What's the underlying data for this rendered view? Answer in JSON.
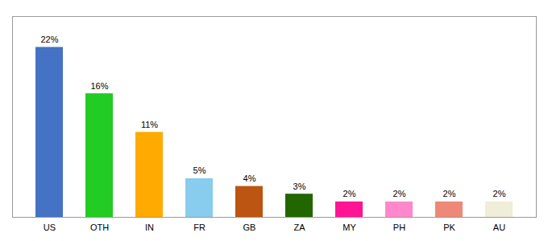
{
  "chart_data": {
    "type": "bar",
    "categories": [
      "US",
      "OTH",
      "IN",
      "FR",
      "GB",
      "ZA",
      "MY",
      "PH",
      "PK",
      "AU"
    ],
    "values": [
      22,
      16,
      11,
      5,
      4,
      3,
      2,
      2,
      2,
      2
    ],
    "value_labels": [
      "22%",
      "16%",
      "11%",
      "5%",
      "4%",
      "3%",
      "2%",
      "2%",
      "2%",
      "2%"
    ],
    "colors": [
      "#4472c4",
      "#22cc22",
      "#ffaa00",
      "#88ccee",
      "#bb5511",
      "#226600",
      "#ff1493",
      "#ff88cc",
      "#ee8877",
      "#f0edd8"
    ],
    "ylim": [
      0,
      26
    ],
    "data_labels": true,
    "tick_labels": "x",
    "grid": false
  }
}
